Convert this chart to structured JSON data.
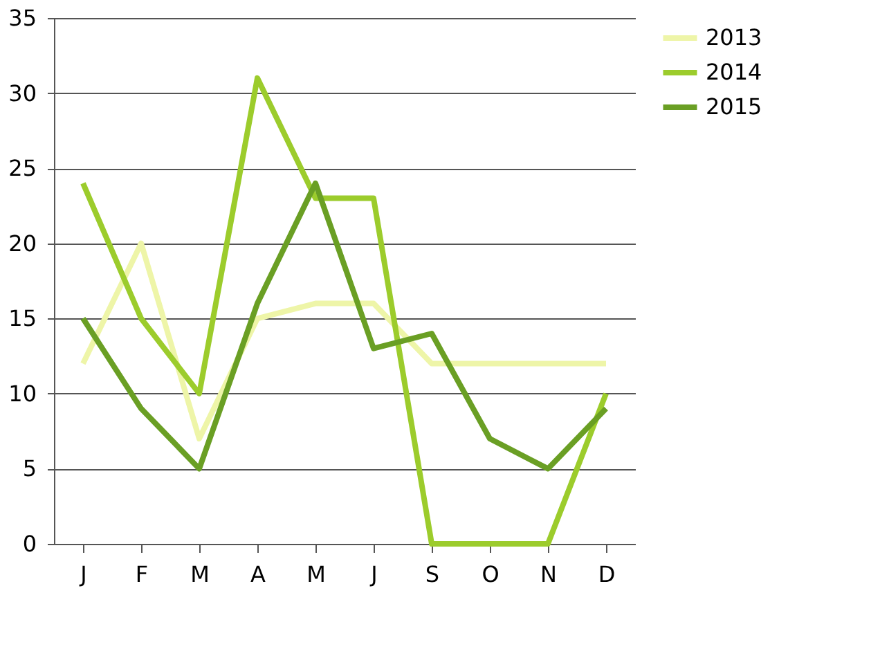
{
  "chart_data": {
    "type": "line",
    "categories": [
      "J",
      "F",
      "M",
      "A",
      "M",
      "J",
      "S",
      "O",
      "N",
      "D"
    ],
    "series": [
      {
        "name": "2013",
        "color": "#eef5a8",
        "values": [
          12,
          20,
          7,
          15,
          16,
          16,
          12,
          12,
          12,
          12
        ]
      },
      {
        "name": "2014",
        "color": "#9ccc2c",
        "values": [
          24,
          15,
          10,
          31,
          23,
          23,
          0,
          0,
          0,
          10
        ]
      },
      {
        "name": "2015",
        "color": "#6a9f24",
        "values": [
          15,
          9,
          5,
          16,
          24,
          13,
          14,
          7,
          5,
          9
        ]
      }
    ],
    "ylim": [
      0,
      35
    ],
    "yticks": [
      0,
      5,
      10,
      15,
      20,
      25,
      30,
      35
    ],
    "grid": "y",
    "legend": "right",
    "marker": "none",
    "line_style": "solid"
  }
}
